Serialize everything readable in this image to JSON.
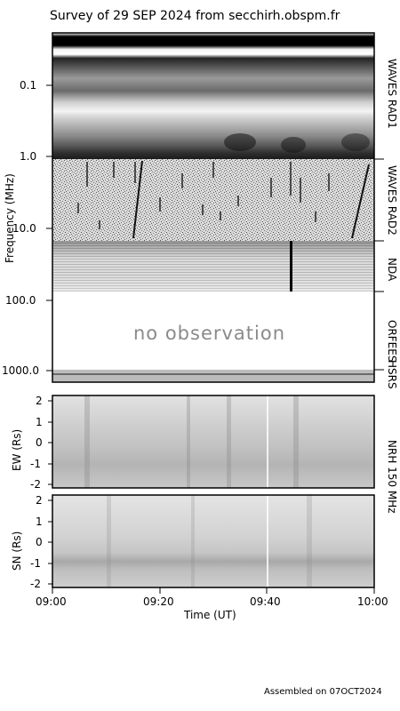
{
  "title": "Survey of 29 SEP 2024 from secchirh.obspm.fr",
  "footer": "Assembled on 07OCT2024",
  "chart_data": [
    {
      "type": "heatmap",
      "name": "dynamic spectrum",
      "ylabel": "Frequency (MHz)",
      "y_scale": "log",
      "y_inverted": true,
      "y_ticks": [
        "0.1",
        "1.0",
        "10.0",
        "100.0",
        "1000.0"
      ],
      "xlim": [
        "09:00",
        "10:00"
      ],
      "instruments": [
        {
          "label": "WAVES RAD1",
          "freq_range_mhz": [
            0.02,
            1.0
          ],
          "observed": true
        },
        {
          "label": "WAVES RAD2",
          "freq_range_mhz": [
            1.0,
            16.0
          ],
          "observed": true
        },
        {
          "label": "NDA",
          "freq_range_mhz": [
            16.0,
            80.0
          ],
          "observed": true
        },
        {
          "label": "ORFEES",
          "freq_range_mhz": [
            140.0,
            1000.0
          ],
          "observed": false
        },
        {
          "label": "HSRS",
          "freq_range_mhz": [
            1000.0,
            1300.0
          ],
          "observed": true
        }
      ],
      "no_data_text": "no observation"
    },
    {
      "type": "heatmap",
      "name": "NRH EW",
      "ylabel": "EW (Rs)",
      "y_ticks": [
        "2",
        "1",
        "0",
        "-1",
        "-2"
      ],
      "ylim": [
        -2.2,
        2.2
      ]
    },
    {
      "type": "heatmap",
      "name": "NRH SN",
      "ylabel": "SN (Rs)",
      "y_ticks": [
        "2",
        "1",
        "0",
        "-1",
        "-2"
      ],
      "ylim": [
        -2.2,
        2.2
      ],
      "xlabel": "Time (UT)",
      "x_ticks": [
        "09:00",
        "09:20",
        "09:40",
        "10:00"
      ]
    }
  ],
  "nrh_label": "NRH 150 MHz",
  "labels": {
    "rad1": "WAVES RAD1",
    "rad2": "WAVES RAD2",
    "nda": "NDA",
    "orfees": "ORFEES",
    "hsrs": "HSRS",
    "nrh": "NRH 150 MHz",
    "freq": "Frequency (MHz)",
    "ew": "EW (Rs)",
    "sn": "SN (Rs)",
    "time": "Time (UT)",
    "noobs": "no observation"
  }
}
